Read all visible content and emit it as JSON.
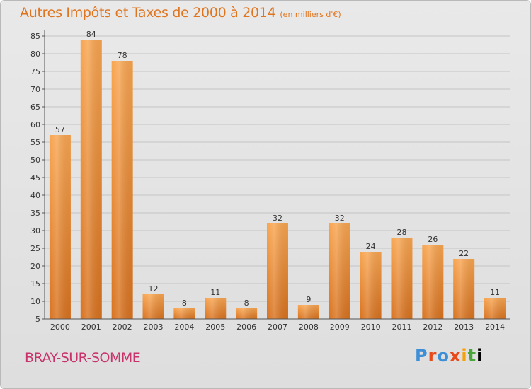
{
  "title": "Autres Impôts et Taxes de 2000 à 2014",
  "unit": "(en milliers d'€)",
  "city": "BRAY-SUR-SOMME",
  "logo": [
    "P",
    "r",
    "o",
    "x",
    "i",
    "t",
    "i"
  ],
  "colors": {
    "bar_top": "#f8a550",
    "bar_bottom": "#d8721f",
    "title": "#e0751f",
    "city": "#c9326b"
  },
  "chart_data": {
    "type": "bar",
    "title": "Autres Impôts et Taxes de 2000 à 2014",
    "subtitle": "(en milliers d'€)",
    "categories": [
      "2000",
      "2001",
      "2002",
      "2003",
      "2004",
      "2005",
      "2006",
      "2007",
      "2008",
      "2009",
      "2010",
      "2011",
      "2012",
      "2013",
      "2014"
    ],
    "values": [
      57,
      84,
      78,
      12,
      8,
      11,
      8,
      32,
      9,
      32,
      24,
      28,
      26,
      22,
      11
    ],
    "yticks": [
      5,
      10,
      15,
      20,
      25,
      30,
      35,
      40,
      45,
      50,
      55,
      60,
      65,
      70,
      75,
      80,
      85
    ],
    "ylim": [
      5,
      85
    ],
    "grid": true,
    "xlabel": "",
    "ylabel": ""
  }
}
